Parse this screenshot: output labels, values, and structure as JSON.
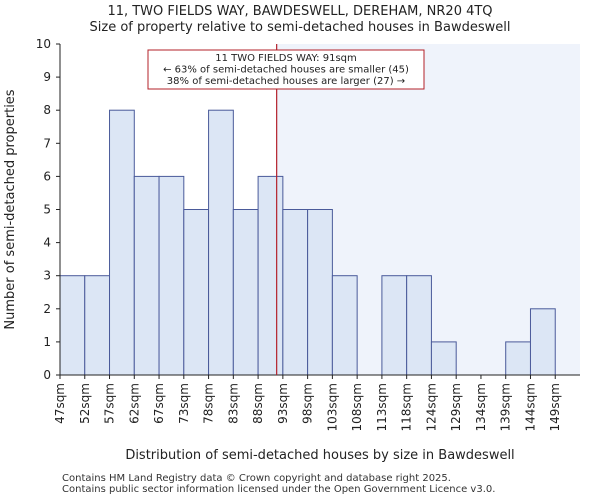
{
  "title": "11, TWO FIELDS WAY, BAWDESWELL, DEREHAM, NR20 4TQ",
  "subtitle": "Size of property relative to semi-detached houses in Bawdeswell",
  "footer_line1": "Contains HM Land Registry data © Crown copyright and database right 2025.",
  "footer_line2": "Contains public sector information licensed under the Open Government Licence v3.0.",
  "chart_data": {
    "type": "bar",
    "title": "11, TWO FIELDS WAY, BAWDESWELL, DEREHAM, NR20 4TQ",
    "subtitle": "Size of property relative to semi-detached houses in Bawdeswell",
    "xlabel": "Distribution of semi-detached houses by size in Bawdeswell",
    "ylabel": "Number of semi-detached properties",
    "categories": [
      "47sqm",
      "52sqm",
      "57sqm",
      "62sqm",
      "67sqm",
      "73sqm",
      "78sqm",
      "83sqm",
      "88sqm",
      "93sqm",
      "98sqm",
      "103sqm",
      "108sqm",
      "113sqm",
      "118sqm",
      "124sqm",
      "129sqm",
      "134sqm",
      "139sqm",
      "144sqm",
      "149sqm"
    ],
    "values": [
      3,
      3,
      8,
      6,
      6,
      5,
      8,
      5,
      6,
      5,
      5,
      3,
      0,
      3,
      3,
      1,
      0,
      0,
      1,
      2,
      0
    ],
    "ylim": [
      0,
      10
    ],
    "yticks": [
      0,
      1,
      2,
      3,
      4,
      5,
      6,
      7,
      8,
      9,
      10
    ],
    "marker_position": 8.75,
    "marker_label": "11 TWO FIELDS WAY: 91sqm",
    "annotation_lines": [
      "11 TWO FIELDS WAY: 91sqm",
      "← 63% of semi-detached houses are smaller (45)",
      "38% of semi-detached houses are larger (27) →"
    ],
    "bar_fill": "#dce6f5",
    "bar_edge": "#4a5a9a",
    "marker_color": "#b3202a",
    "highlight_fill": "#eff3fb"
  }
}
